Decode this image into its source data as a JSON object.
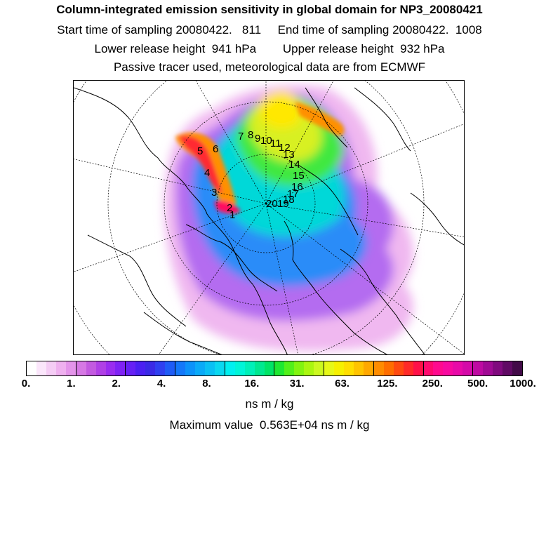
{
  "header": {
    "title": "Column-integrated emission sensitivity in global domain for NP3_20080421",
    "sampling": "Start time of sampling 20080422.   811     End time of sampling 20080422.  1008",
    "release": "Lower release height  941 hPa        Upper release height  932 hPa",
    "note": "Passive tracer used, meteorological data are from ECMWF"
  },
  "trajectory_labels": [
    "1",
    "2",
    "3",
    "4",
    "5",
    "6",
    "7",
    "8",
    "9",
    "10",
    "11",
    "12",
    "13",
    "14",
    "15",
    "16",
    "17",
    "18",
    "19",
    "20"
  ],
  "colorbar": {
    "ticks": [
      "0.",
      "1.",
      "2.",
      "4.",
      "8.",
      "16.",
      "31.",
      "63.",
      "125.",
      "250.",
      "500.",
      "1000."
    ],
    "colors": [
      "#ffffff",
      "#fbe6fb",
      "#f5ccf5",
      "#efb0ef",
      "#e494ea",
      "#d678e4",
      "#c35ae0",
      "#b040e6",
      "#9a2cf0",
      "#7f22f5",
      "#6620f5",
      "#4b20f2",
      "#3a2ae6",
      "#2f40f0",
      "#1f5cf6",
      "#1478fa",
      "#0c92fa",
      "#0aaaf8",
      "#0ac0f4",
      "#0ad8f0",
      "#00f0f0",
      "#00f5d8",
      "#00f0b8",
      "#00e890",
      "#00e466",
      "#1ee832",
      "#52f01a",
      "#82f410",
      "#aaf610",
      "#ccf820",
      "#e6f818",
      "#f6f000",
      "#ffde00",
      "#ffc400",
      "#ffa800",
      "#ff8c00",
      "#ff6e00",
      "#ff4a10",
      "#ff2a28",
      "#ff1048",
      "#ff0a6e",
      "#ff0a8e",
      "#f80aa0",
      "#e80aa8",
      "#d40aa8",
      "#be0aa2",
      "#a00a94",
      "#800a7e",
      "#600a64",
      "#420a48"
    ],
    "unit": "ns m / kg"
  },
  "maximum": "Maximum value  0.563E+04 ns m / kg"
}
